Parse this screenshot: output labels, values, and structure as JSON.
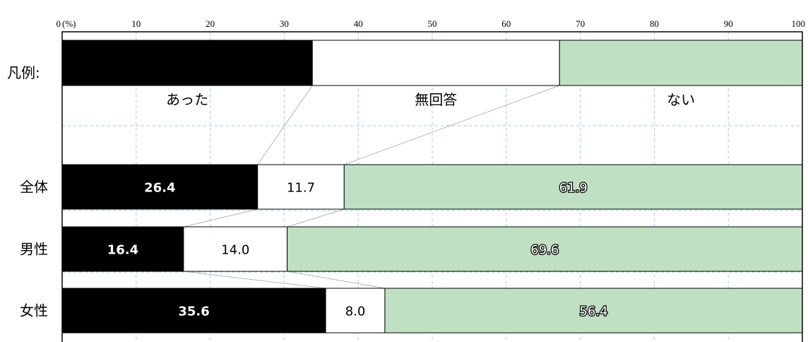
{
  "colors": {
    "yes": "#000000",
    "no_answer": "#ffffff",
    "no": "#bfe0c3",
    "grid": "#9ec9e8",
    "connector": "#b5b5b5"
  },
  "axis": {
    "zero_label": "0",
    "unit_label": "(%)",
    "ticks": [
      0,
      10,
      20,
      30,
      40,
      50,
      60,
      70,
      80,
      90,
      100
    ]
  },
  "legend": {
    "prefix": "凡例:",
    "items": [
      "あった",
      "無回答",
      "ない"
    ],
    "proportions": [
      33.8,
      33.4,
      32.8
    ]
  },
  "chart_data": {
    "type": "bar",
    "orientation": "horizontal-stacked-100",
    "xlim": [
      0,
      100
    ],
    "x_unit": "%",
    "categories": [
      "全体",
      "男性",
      "女性"
    ],
    "series": [
      {
        "name": "あった",
        "values": [
          26.4,
          16.4,
          35.6
        ]
      },
      {
        "name": "無回答",
        "values": [
          11.7,
          14.0,
          8.0
        ]
      },
      {
        "name": "ない",
        "values": [
          61.9,
          69.6,
          56.4
        ]
      }
    ],
    "labels": [
      [
        "26.4",
        "11.7",
        "61.9"
      ],
      [
        "16.4",
        "14.0",
        "69.6"
      ],
      [
        "35.6",
        "8.0",
        "56.4"
      ]
    ],
    "grid": true,
    "legend_position": "top"
  }
}
